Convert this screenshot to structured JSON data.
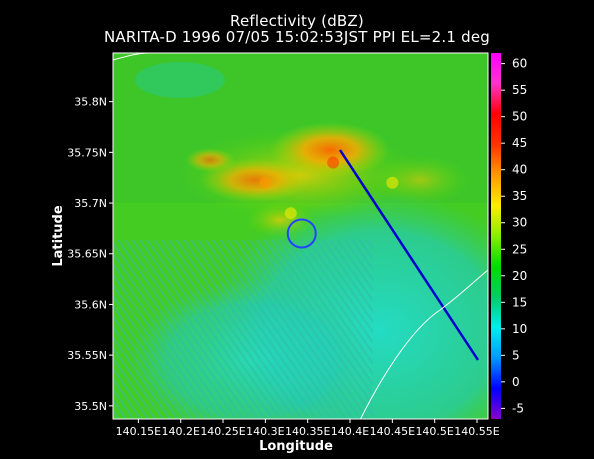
{
  "chart_data": {
    "type": "heatmap",
    "title": "Reflectivity (dBZ)",
    "subtitle": "NARITA-D 1996 07/05 15:02:53JST PPI EL=2.1 deg",
    "xlabel": "Longitude",
    "ylabel": "Latitude",
    "x_ticks": [
      "140.15E",
      "140.2E",
      "140.25E",
      "140.3E",
      "140.35E",
      "140.4E",
      "140.45E",
      "140.5E",
      "140.55E"
    ],
    "x_tick_values": [
      140.15,
      140.2,
      140.25,
      140.3,
      140.35,
      140.4,
      140.45,
      140.5,
      140.55
    ],
    "xlim": [
      140.12,
      140.563
    ],
    "y_ticks": [
      "35.5N",
      "35.55N",
      "35.6N",
      "35.65N",
      "35.7N",
      "35.75N",
      "35.8N"
    ],
    "y_tick_values": [
      35.5,
      35.55,
      35.6,
      35.65,
      35.7,
      35.75,
      35.8
    ],
    "ylim": [
      35.487,
      35.848
    ],
    "colorbar": {
      "ticks": [
        "60",
        "55",
        "50",
        "45",
        "40",
        "35",
        "30",
        "25",
        "20",
        "15",
        "10",
        "5",
        "0",
        "-5"
      ],
      "tick_values": [
        60,
        55,
        50,
        45,
        40,
        35,
        30,
        25,
        20,
        15,
        10,
        5,
        0,
        -5
      ],
      "range": [
        -7,
        62
      ],
      "colors": [
        "#8800cc",
        "#0000ff",
        "#0099ff",
        "#00eeee",
        "#00cc66",
        "#00dd00",
        "#88ee00",
        "#ffee00",
        "#ff9900",
        "#ff3300",
        "#ff0000",
        "#ff33cc",
        "#ff00ff"
      ]
    },
    "features": {
      "circle_center": [
        140.343,
        35.67
      ],
      "circle_color": "#2244ff",
      "cells": [
        {
          "lon": 140.38,
          "lat": 35.74,
          "dbz": 44
        },
        {
          "lon": 140.3,
          "lat": 35.72,
          "dbz": 38
        },
        {
          "lon": 140.45,
          "lat": 35.72,
          "dbz": 36
        },
        {
          "lon": 140.33,
          "lat": 35.69,
          "dbz": 33
        }
      ]
    }
  }
}
